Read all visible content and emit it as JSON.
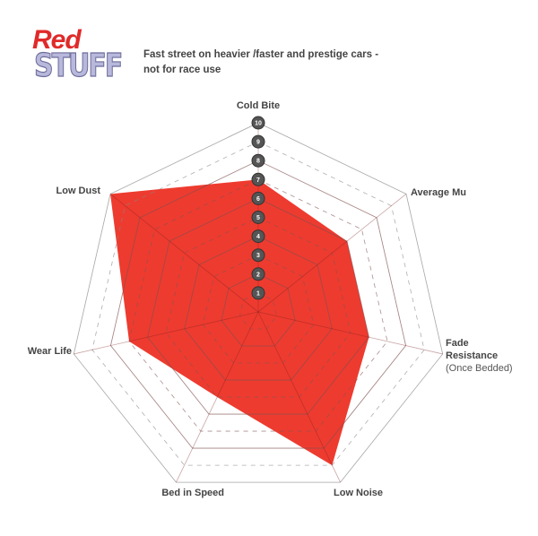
{
  "logo": {
    "word1": "Red",
    "word2": "STUFF",
    "tm": "™"
  },
  "subtitle": {
    "line1": "Fast street on heavier /faster and prestige cars -",
    "line2": "not for race use"
  },
  "chart_data": {
    "type": "radar",
    "axes": [
      "Cold Bite",
      "Average Mu",
      "Fade Resistance",
      "Low Noise",
      "Bed in Speed",
      "Wear Life",
      "Low Dust"
    ],
    "axis_sublabels": {
      "Fade Resistance": "(Once Bedded)"
    },
    "values": [
      7,
      6,
      6,
      9,
      5,
      7,
      10
    ],
    "range": [
      0,
      10
    ],
    "tick_labels": [
      "1",
      "2",
      "3",
      "4",
      "5",
      "6",
      "7",
      "8",
      "9",
      "10"
    ],
    "fill_color": "#ee3b2f",
    "grid_color": "#888888"
  }
}
